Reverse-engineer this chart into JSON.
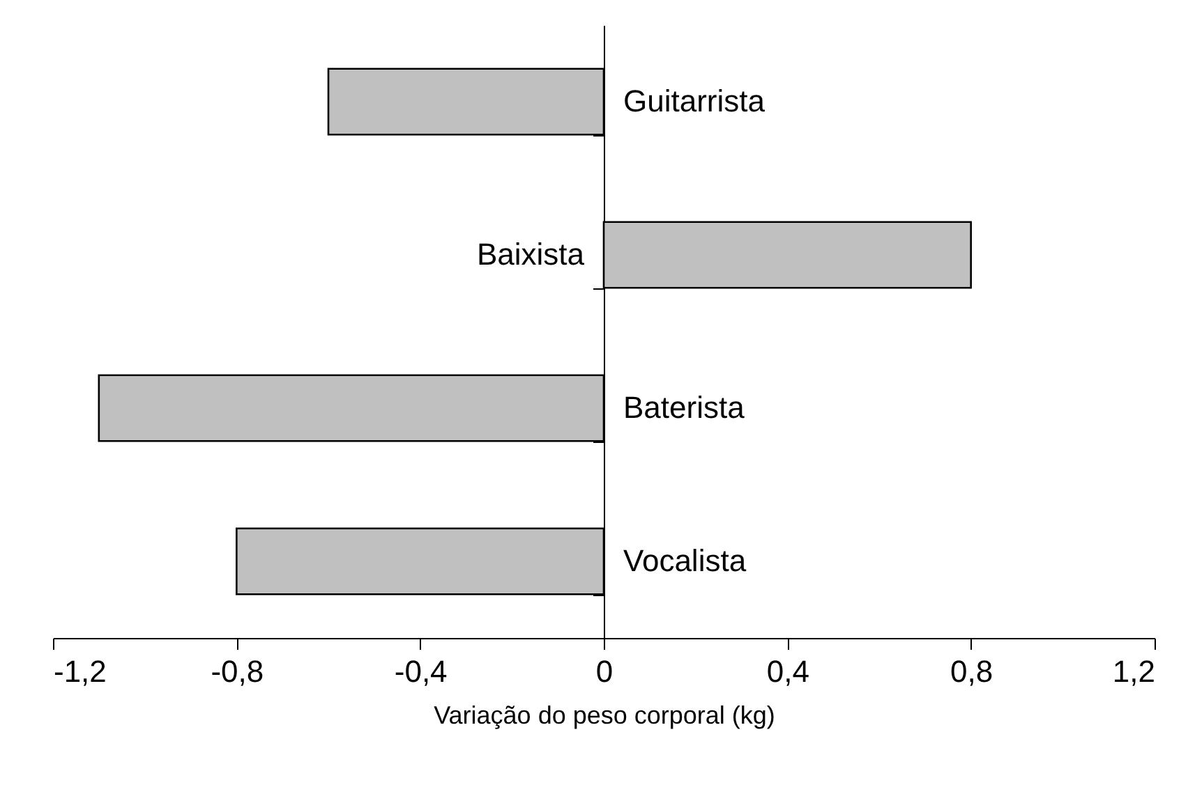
{
  "chart_data": {
    "type": "bar",
    "orientation": "horizontal",
    "xlabel": "Variação do peso corporal (kg)",
    "categories": [
      "Guitarrista",
      "Baixista",
      "Baterista",
      "Vocalista"
    ],
    "values": [
      -0.6,
      0.8,
      -1.1,
      -0.8
    ],
    "color": "#c0c0c0",
    "xlim": [
      -1.2,
      1.2
    ],
    "xticks": [
      {
        "value": -1.2,
        "label": "-1,2"
      },
      {
        "value": -0.8,
        "label": "-0,8"
      },
      {
        "value": -0.4,
        "label": "-0,4"
      },
      0,
      {
        "value": 0.4,
        "label": "0,4"
      },
      {
        "value": 0.8,
        "label": "0,8"
      },
      {
        "value": 1.2,
        "label": "1,2"
      }
    ],
    "grid": false
  }
}
